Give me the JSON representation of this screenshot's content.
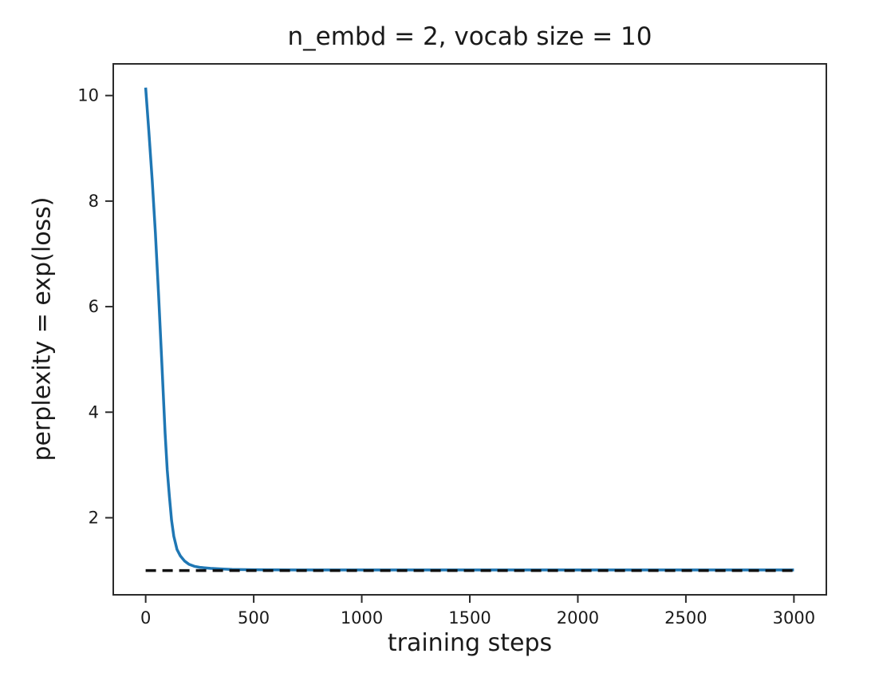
{
  "chart_data": {
    "type": "line",
    "title": "n_embd = 2, vocab size = 10",
    "xlabel": "training steps",
    "ylabel": "perplexity = exp(loss)",
    "xlim": [
      -150,
      3150
    ],
    "ylim": [
      0.54,
      10.6
    ],
    "grid": false,
    "legend": null,
    "xticks": [
      {
        "v": 0,
        "label": "0"
      },
      {
        "v": 500,
        "label": "500"
      },
      {
        "v": 1000,
        "label": "1000"
      },
      {
        "v": 1500,
        "label": "1500"
      },
      {
        "v": 2000,
        "label": "2000"
      },
      {
        "v": 2500,
        "label": "2500"
      },
      {
        "v": 3000,
        "label": "3000"
      }
    ],
    "yticks": [
      {
        "v": 2,
        "label": "2"
      },
      {
        "v": 4,
        "label": "4"
      },
      {
        "v": 6,
        "label": "6"
      },
      {
        "v": 8,
        "label": "8"
      },
      {
        "v": 10,
        "label": "10"
      }
    ],
    "series": [
      {
        "name": "perplexity-curve",
        "color": "#1f77b4",
        "width": 3.5,
        "dash": null,
        "points": [
          [
            0,
            10.15
          ],
          [
            15,
            9.3
          ],
          [
            30,
            8.4
          ],
          [
            45,
            7.4
          ],
          [
            60,
            6.2
          ],
          [
            75,
            4.9
          ],
          [
            90,
            3.6
          ],
          [
            100,
            2.9
          ],
          [
            110,
            2.4
          ],
          [
            120,
            1.95
          ],
          [
            130,
            1.65
          ],
          [
            145,
            1.4
          ],
          [
            160,
            1.28
          ],
          [
            180,
            1.18
          ],
          [
            200,
            1.12
          ],
          [
            225,
            1.08
          ],
          [
            250,
            1.06
          ],
          [
            300,
            1.04
          ],
          [
            350,
            1.03
          ],
          [
            400,
            1.02
          ],
          [
            500,
            1.015
          ],
          [
            700,
            1.01
          ],
          [
            1000,
            1.01
          ],
          [
            1500,
            1.01
          ],
          [
            2000,
            1.01
          ],
          [
            2500,
            1.01
          ],
          [
            3000,
            1.01
          ]
        ]
      },
      {
        "name": "reference-line",
        "color": "#111111",
        "width": 3.5,
        "dash": "13 8",
        "points": [
          [
            0,
            1.0
          ],
          [
            3000,
            1.0
          ]
        ]
      }
    ],
    "colors": {
      "accent_blue": "#1f77b4",
      "frame": "#2b2b2b",
      "text": "#1a1a1a",
      "background": "#ffffff"
    },
    "tick_font_size": 21
  }
}
